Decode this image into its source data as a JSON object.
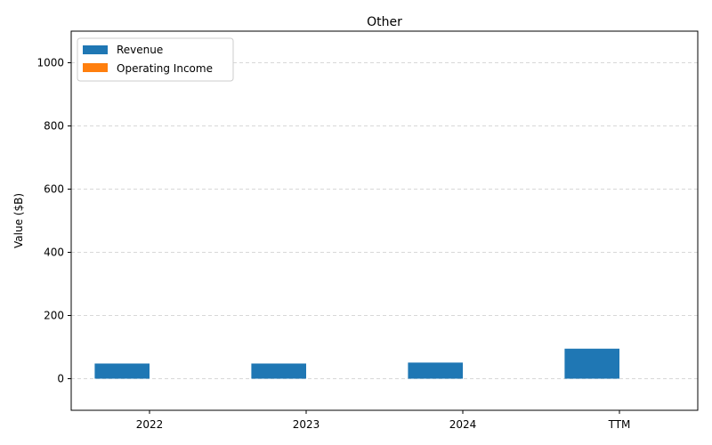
{
  "chart_data": {
    "type": "bar",
    "title": "Other",
    "xlabel": "",
    "ylabel": "Value ($B)",
    "categories": [
      "2022",
      "2023",
      "2024",
      "TTM"
    ],
    "series": [
      {
        "name": "Revenue",
        "color": "#1f77b4",
        "values": [
          48,
          48,
          51,
          95
        ]
      },
      {
        "name": "Operating Income",
        "color": "#ff7f0e",
        "values": [
          0,
          0,
          0,
          0
        ]
      }
    ],
    "ylim": [
      -100,
      1100
    ],
    "yticks": [
      0,
      200,
      400,
      600,
      800,
      1000
    ],
    "grid": "y-dashed",
    "legend_position": "top-left"
  }
}
